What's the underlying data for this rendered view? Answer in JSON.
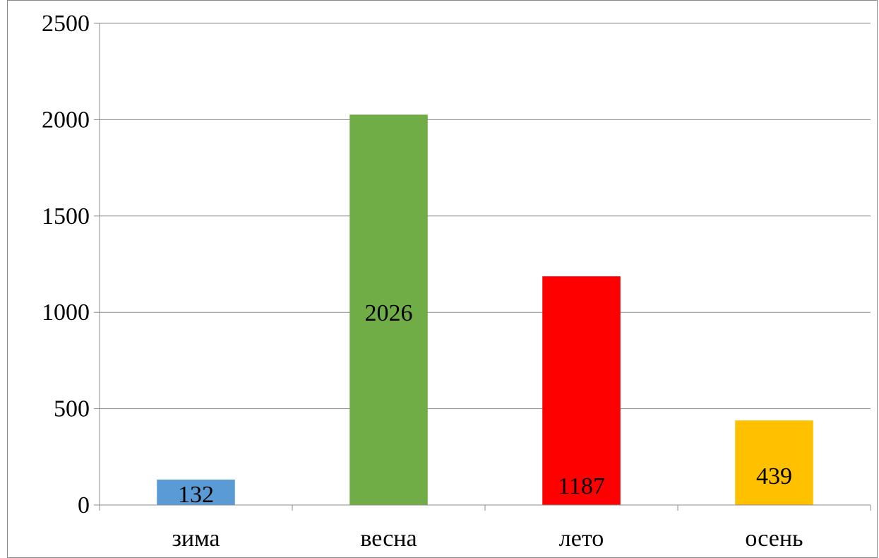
{
  "chart_data": {
    "type": "bar",
    "title": "",
    "xlabel": "",
    "ylabel": "",
    "categories": [
      "зима",
      "весна",
      "лето",
      "осень"
    ],
    "values": [
      132,
      2026,
      1187,
      439
    ],
    "data_labels": [
      "132",
      "2026",
      "1187",
      "439"
    ],
    "colors": [
      "#5b9bd5",
      "#70ad47",
      "#ff0000",
      "#ffc000"
    ],
    "ylim": [
      0,
      2500
    ],
    "yticks": [
      0,
      500,
      1000,
      1500,
      2000,
      2500
    ],
    "ytick_labels": [
      "0",
      "500",
      "1000",
      "1500",
      "2000",
      "2500"
    ],
    "grid": true,
    "legend": "none"
  }
}
